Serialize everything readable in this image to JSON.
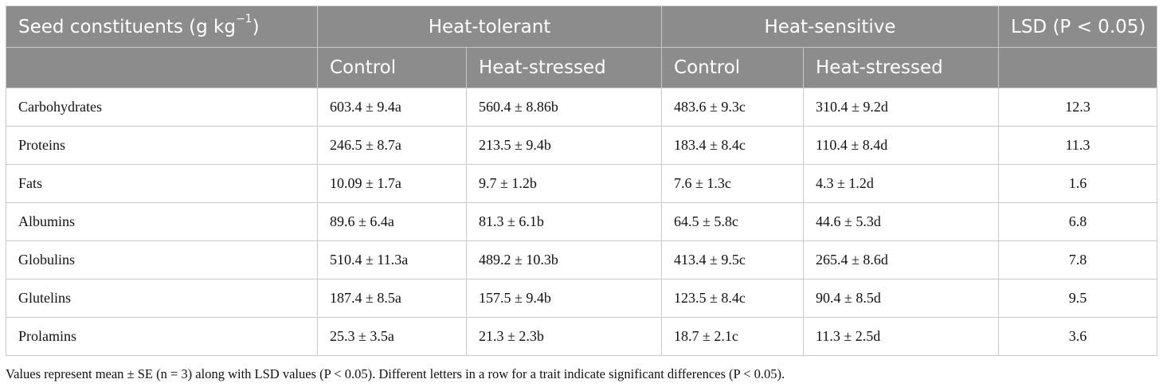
{
  "table": {
    "header": {
      "row_label": "Seed constituents (g kg",
      "row_label_exp": "−1",
      "row_label_tail": ")",
      "group_heat_tolerant": "Heat-tolerant",
      "group_heat_sensitive": "Heat-sensitive",
      "lsd": "LSD (P < 0.05)",
      "sub": [
        "Control",
        "Heat-stressed",
        "Control",
        "Heat-stressed"
      ]
    },
    "rows": [
      {
        "name": "Carbohydrates",
        "values": [
          "603.4 ± 9.4a",
          "560.4 ± 8.86b",
          "483.6 ± 9.3c",
          "310.4 ± 9.2d"
        ],
        "lsd": "12.3"
      },
      {
        "name": "Proteins",
        "values": [
          "246.5 ± 8.7a",
          "213.5 ± 9.4b",
          "183.4 ± 8.4c",
          "110.4 ± 8.4d"
        ],
        "lsd": "11.3"
      },
      {
        "name": "Fats",
        "values": [
          "10.09 ± 1.7a",
          "9.7 ± 1.2b",
          "7.6 ± 1.3c",
          "4.3 ± 1.2d"
        ],
        "lsd": "1.6"
      },
      {
        "name": "Albumins",
        "values": [
          "89.6 ± 6.4a",
          "81.3 ± 6.1b",
          "64.5 ± 5.8c",
          "44.6 ± 5.3d"
        ],
        "lsd": "6.8"
      },
      {
        "name": "Globulins",
        "values": [
          "510.4 ± 11.3a",
          "489.2 ± 10.3b",
          "413.4 ± 9.5c",
          "265.4 ± 8.6d"
        ],
        "lsd": "7.8"
      },
      {
        "name": "Glutelins",
        "values": [
          "187.4 ± 8.5a",
          "157.5 ± 9.4b",
          "123.5 ± 8.4c",
          "90.4 ± 8.5d"
        ],
        "lsd": "9.5"
      },
      {
        "name": "Prolamins",
        "values": [
          "25.3 ± 3.5a",
          "21.3 ± 2.3b",
          "18.7 ± 2.1c",
          "11.3 ± 2.5d"
        ],
        "lsd": "3.6"
      }
    ]
  },
  "footnote": "Values represent mean ± SE (n = 3) along with LSD values (P < 0.05). Different letters in a row for a trait indicate significant differences (P < 0.05).",
  "colors": {
    "header_bg": "#8c8c8c",
    "header_text": "#ffffff",
    "border": "#c9c9c9"
  }
}
